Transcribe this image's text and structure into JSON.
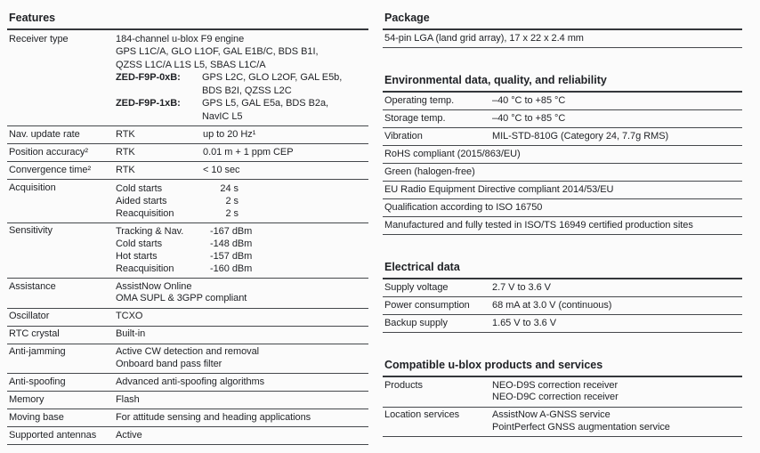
{
  "colors": {
    "text": "#1f2125",
    "rule": "#45484c",
    "rule_heavy": "#34373b",
    "background": "#fbfbfb"
  },
  "features": {
    "title": "Features",
    "receiver": {
      "label": "Receiver type",
      "lines": [
        "184-channel u-blox F9 engine",
        "GPS L1C/A, GLO L1OF, GAL E1B/C, BDS B1I,",
        "QZSS L1C/A L1S L5, SBAS L1C/A"
      ],
      "variants": [
        {
          "name": "ZED-F9P-0xB:",
          "lines": [
            "GPS L2C, GLO L2OF, GAL E5b,",
            "BDS B2I, QZSS L2C"
          ]
        },
        {
          "name": "ZED-F9P-1xB:",
          "lines": [
            "GPS L5, GAL E5a, BDS B2a,",
            "NavIC L5"
          ]
        }
      ]
    },
    "specs": [
      {
        "label": "Nav. update rate",
        "sub": "RTK",
        "value": "up to 20 Hz¹"
      },
      {
        "label": "Position accuracy²",
        "sub": "RTK",
        "value": "0.01 m + 1 ppm CEP"
      },
      {
        "label": "Convergence time²",
        "sub": "RTK",
        "value": "< 10 sec"
      }
    ],
    "acquisition": {
      "label": "Acquisition",
      "pairs": [
        {
          "sub": "Cold starts",
          "value": "24 s"
        },
        {
          "sub": "Aided starts",
          "value": "2 s"
        },
        {
          "sub": "Reacquisition",
          "value": "2 s"
        }
      ]
    },
    "sensitivity": {
      "label": "Sensitivity",
      "pairs": [
        {
          "sub": "Tracking & Nav.",
          "value": "-167 dBm"
        },
        {
          "sub": "Cold starts",
          "value": "-148 dBm"
        },
        {
          "sub": "Hot starts",
          "value": "-157 dBm"
        },
        {
          "sub": "Reacquisition",
          "value": "-160 dBm"
        }
      ]
    },
    "assistance": {
      "label": "Assistance",
      "lines": [
        "AssistNow Online",
        "OMA SUPL & 3GPP compliant"
      ]
    },
    "oscillator": {
      "label": "Oscillator",
      "value": "TCXO"
    },
    "rtc_crystal": {
      "label": "RTC crystal",
      "value": "Built-in"
    },
    "anti_jamming": {
      "label": "Anti-jamming",
      "lines": [
        "Active CW detection and removal",
        "Onboard band pass filter"
      ]
    },
    "anti_spoofing": {
      "label": "Anti-spoofing",
      "value": "Advanced anti-spoofing algorithms"
    },
    "memory": {
      "label": "Memory",
      "value": "Flash"
    },
    "moving_base": {
      "label": "Moving base",
      "value": "For attitude sensing and heading applications"
    },
    "antennas": {
      "label": "Supported antennas",
      "value": "Active"
    }
  },
  "package": {
    "title": "Package",
    "text": "54-pin LGA (land grid array),  17 x 22 x 2.4 mm"
  },
  "environmental": {
    "title": "Environmental data, quality, and reliability",
    "pairs": [
      {
        "label": "Operating temp.",
        "value": "–40 °C to +85 °C"
      },
      {
        "label": "Storage temp.",
        "value": "–40 °C to +85 °C"
      },
      {
        "label": "Vibration",
        "value": "MIL-STD-810G (Category 24, 7.7g RMS)"
      }
    ],
    "notes": [
      "RoHS compliant (2015/863/EU)",
      "Green (halogen-free)",
      "EU Radio Equipment Directive compliant 2014/53/EU",
      "Qualification according to ISO 16750",
      "Manufactured and fully tested in ISO/TS 16949 certified production sites"
    ]
  },
  "electrical": {
    "title": "Electrical data",
    "pairs": [
      {
        "label": "Supply voltage",
        "value": "2.7 V to 3.6 V"
      },
      {
        "label": "Power consumption",
        "value": "68 mA at 3.0 V (continuous)"
      },
      {
        "label": "Backup supply",
        "value": "1.65 V to 3.6 V"
      }
    ]
  },
  "compatible": {
    "title": "Compatible u-blox products and services",
    "rows": [
      {
        "label": "Products",
        "lines": [
          "NEO-D9S correction receiver",
          "NEO-D9C correction receiver"
        ]
      },
      {
        "label": "Location services",
        "lines": [
          "AssistNow A-GNSS service",
          "PointPerfect GNSS augmentation service"
        ]
      }
    ]
  }
}
